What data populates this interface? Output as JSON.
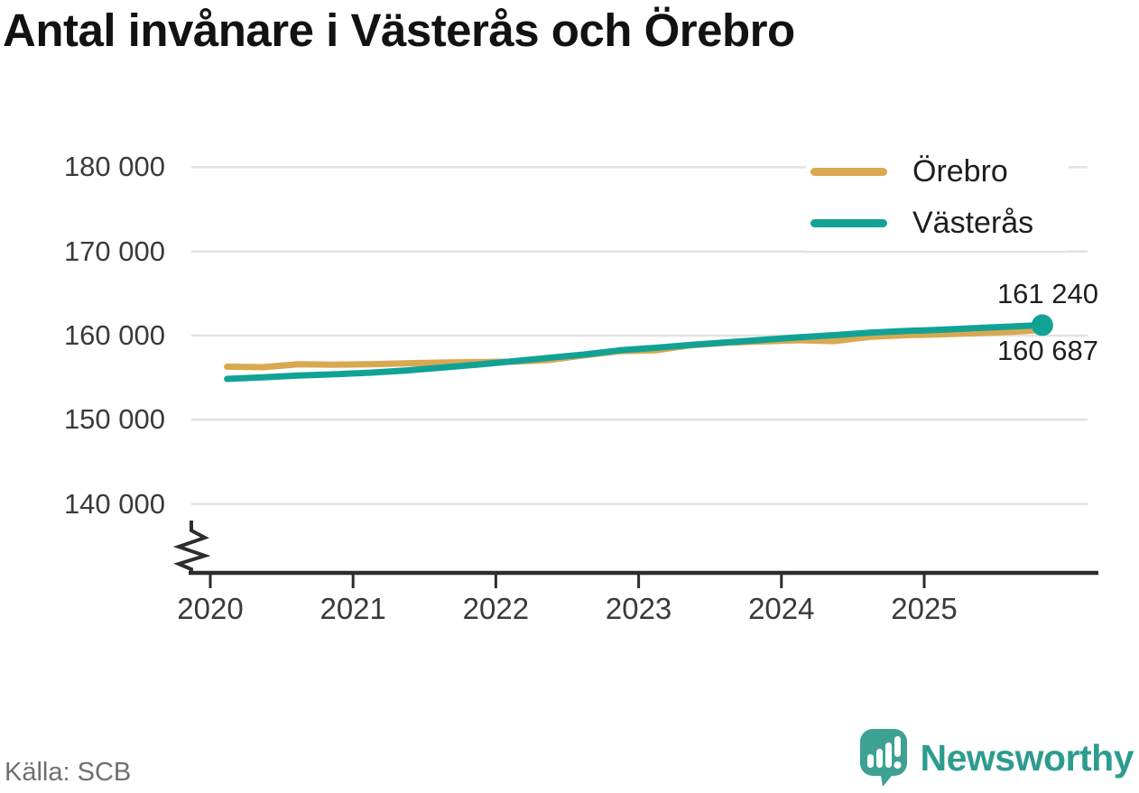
{
  "source": "Källa: SCB",
  "brand": {
    "name": "Newsworthy",
    "color": "#2d9c8f",
    "icon_color": "#3da293"
  },
  "chart_data": {
    "type": "line",
    "title": "Antal invånare i Västerås och Örebro",
    "xlabel": "",
    "ylabel": "",
    "grid": "horizontal",
    "legend_position": "top-right",
    "axis_break": true,
    "x_unit": "decimal_year",
    "x": [
      2020.13,
      2020.38,
      2020.63,
      2020.88,
      2021.13,
      2021.38,
      2021.63,
      2021.88,
      2022.13,
      2022.38,
      2022.63,
      2022.88,
      2023.13,
      2023.38,
      2023.63,
      2023.88,
      2024.13,
      2024.38,
      2024.63,
      2024.88,
      2025.13,
      2025.38,
      2025.63,
      2025.84
    ],
    "series": [
      {
        "name": "Örebro",
        "color": "#d9a850",
        "values": [
          156300,
          156250,
          156600,
          156550,
          156600,
          156700,
          156800,
          156850,
          156900,
          157100,
          157650,
          158150,
          158250,
          158850,
          159150,
          159300,
          159450,
          159350,
          159850,
          160050,
          160150,
          160300,
          160450,
          160687
        ]
      },
      {
        "name": "Västerås",
        "color": "#11a296",
        "end_dot": true,
        "values": [
          154850,
          155050,
          155250,
          155400,
          155600,
          155850,
          156200,
          156550,
          156950,
          157350,
          157750,
          158250,
          158550,
          158900,
          159200,
          159500,
          159800,
          160050,
          160350,
          160550,
          160700,
          160900,
          161080,
          161240
        ]
      }
    ],
    "end_labels": [
      {
        "series": "Västerås",
        "text": "161 240",
        "value": 161240
      },
      {
        "series": "Örebro",
        "text": "160 687",
        "value": 160687
      }
    ],
    "yticks": [
      180000,
      170000,
      160000,
      150000,
      140000
    ],
    "ytick_labels": [
      "180 000",
      "170 000",
      "160 000",
      "150 000",
      "140 000"
    ],
    "xticks": [
      2020,
      2021,
      2022,
      2023,
      2024,
      2025
    ],
    "xtick_labels": [
      "2020",
      "2021",
      "2022",
      "2023",
      "2024",
      "2025"
    ],
    "ylim_display": [
      136500,
      183000
    ]
  }
}
